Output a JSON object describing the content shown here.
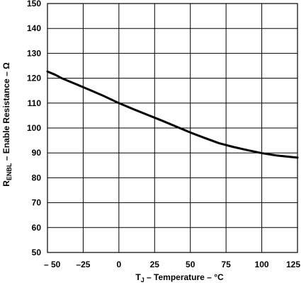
{
  "chart_data": {
    "type": "line",
    "xlabel_main": "T",
    "xlabel_sub": "J",
    "xlabel_rest": " – Temperature –  °C",
    "ylabel_main": "R",
    "ylabel_sub": "ENBL",
    "ylabel_rest": " – Enable Resistance – Ω",
    "xlim": [
      -50,
      125
    ],
    "ylim": [
      50,
      150
    ],
    "xticks": [
      -50,
      -25,
      0,
      25,
      50,
      75,
      100,
      125
    ],
    "xtick_labels": [
      "– 50",
      "–25",
      "0",
      "25",
      "50",
      "75",
      "100",
      "125"
    ],
    "yticks": [
      50,
      60,
      70,
      80,
      90,
      100,
      110,
      120,
      130,
      140,
      150
    ],
    "grid": true,
    "series": [
      {
        "x": [
          -50,
          -45,
          -40,
          -30,
          -20,
          -10,
          0,
          10,
          20,
          30,
          40,
          50,
          60,
          70,
          80,
          90,
          100,
          110,
          120,
          125
        ],
        "y": [
          122.7,
          121.5,
          120.0,
          117.6,
          115.2,
          112.7,
          110.0,
          107.6,
          105.3,
          103.0,
          100.6,
          98.2,
          96.0,
          93.9,
          92.4,
          91.1,
          89.9,
          89.0,
          88.4,
          88.1
        ]
      }
    ]
  }
}
